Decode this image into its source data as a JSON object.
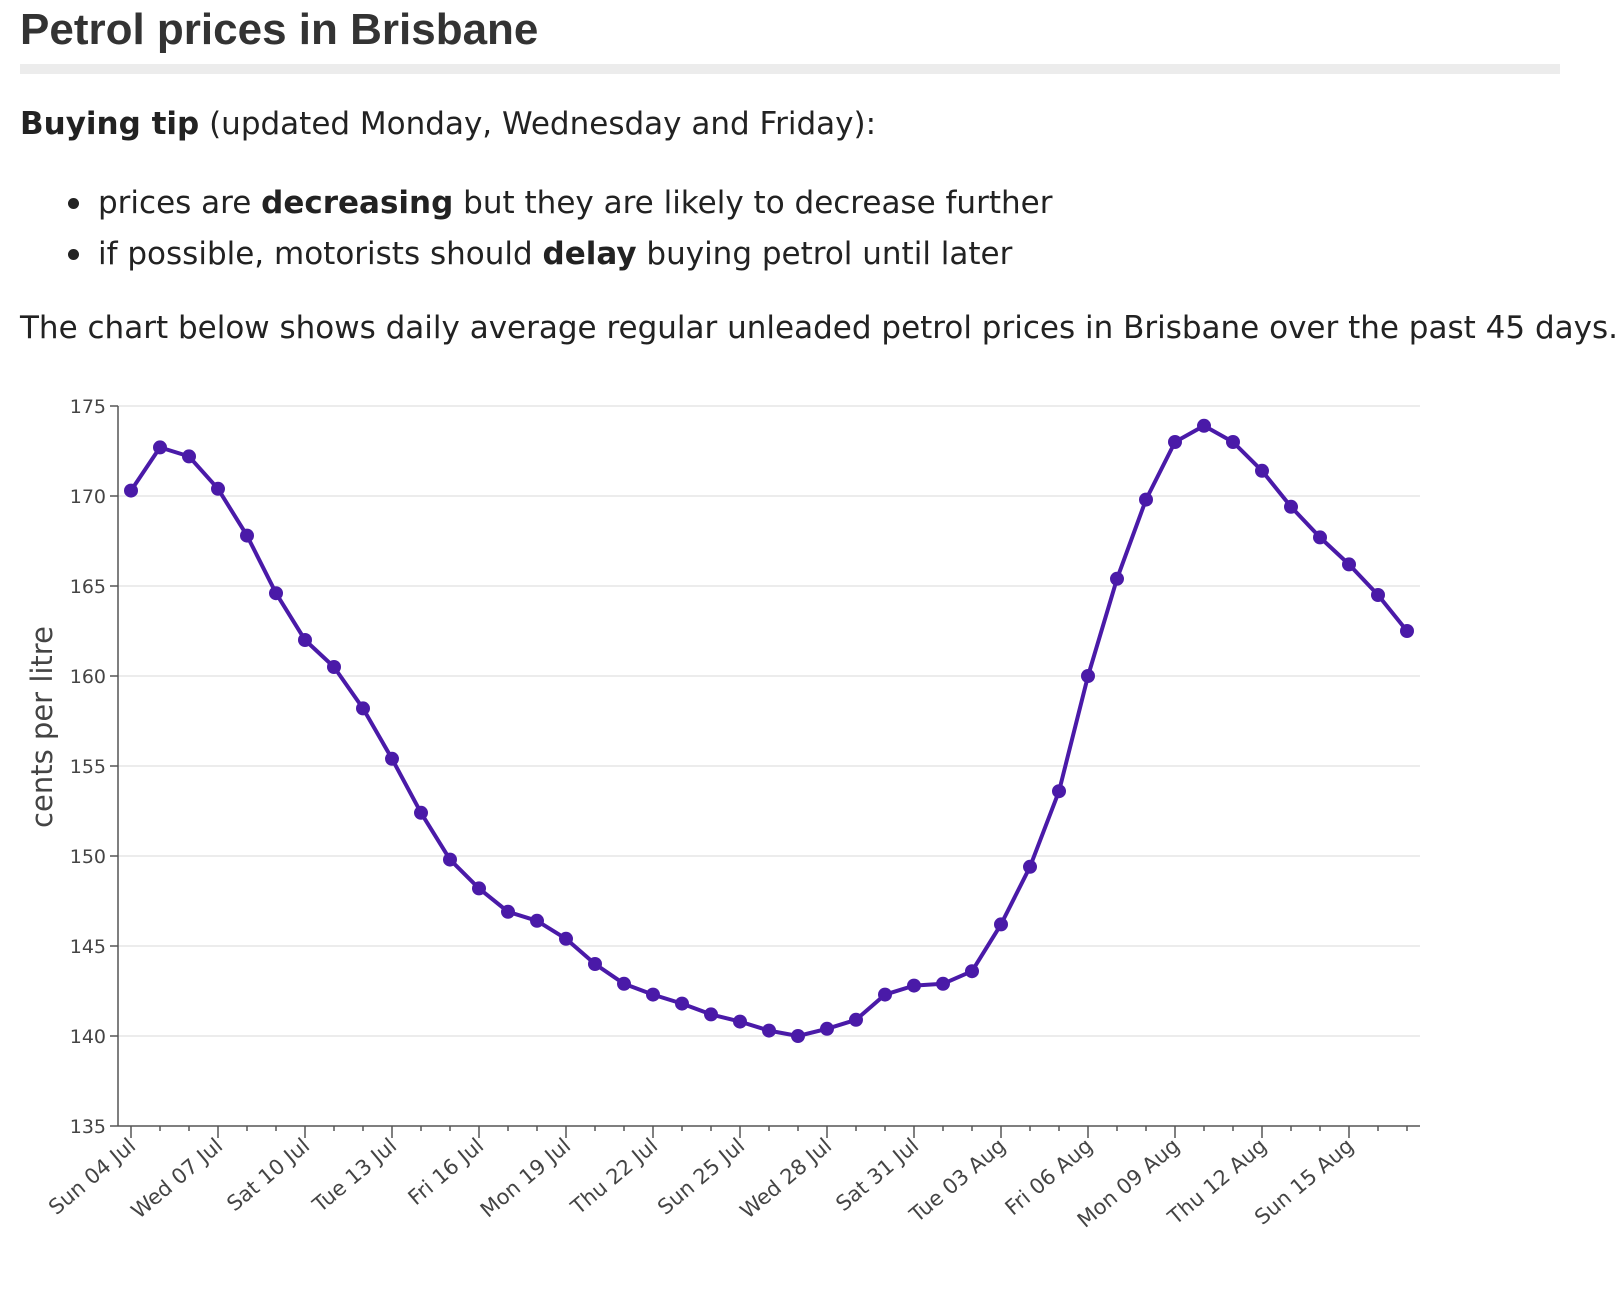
{
  "page": {
    "title": "Petrol prices in Brisbane",
    "tip": {
      "label": "Buying tip",
      "note": " (updated Monday, Wednesday and Friday):"
    },
    "bullets": [
      {
        "before": "prices are ",
        "bold": "decreasing",
        "after": " but they are likely to decrease further"
      },
      {
        "before": "if possible, motorists should ",
        "bold": "delay",
        "after": " buying petrol until later"
      }
    ],
    "chart_description": "The chart below shows daily average regular unleaded petrol prices in Brisbane over the past 45 days."
  },
  "colors": {
    "line": "#4a1aa8",
    "grid": "#e6e6e6",
    "axis": "#555555"
  },
  "chart_data": {
    "type": "line",
    "title": "",
    "xlabel": "",
    "ylabel": "cents per litre",
    "ylim": [
      135,
      175
    ],
    "yticks": [
      135,
      140,
      145,
      150,
      155,
      160,
      165,
      170,
      175
    ],
    "grid": true,
    "x_tick_labels": [
      "Sun 04 Jul",
      "Wed 07 Jul",
      "Sat 10 Jul",
      "Tue 13 Jul",
      "Fri 16 Jul",
      "Mon 19 Jul",
      "Thu 22 Jul",
      "Sun 25 Jul",
      "Wed 28 Jul",
      "Sat 31 Jul",
      "Tue 03 Aug",
      "Fri 06 Aug",
      "Mon 09 Aug",
      "Thu 12 Aug",
      "Sun 15 Aug"
    ],
    "x": [
      "2021-07-04",
      "2021-07-05",
      "2021-07-06",
      "2021-07-07",
      "2021-07-08",
      "2021-07-09",
      "2021-07-10",
      "2021-07-11",
      "2021-07-12",
      "2021-07-13",
      "2021-07-14",
      "2021-07-15",
      "2021-07-16",
      "2021-07-17",
      "2021-07-18",
      "2021-07-19",
      "2021-07-20",
      "2021-07-21",
      "2021-07-22",
      "2021-07-23",
      "2021-07-24",
      "2021-07-25",
      "2021-07-26",
      "2021-07-27",
      "2021-07-28",
      "2021-07-29",
      "2021-07-30",
      "2021-07-31",
      "2021-08-01",
      "2021-08-02",
      "2021-08-03",
      "2021-08-04",
      "2021-08-05",
      "2021-08-06",
      "2021-08-07",
      "2021-08-08",
      "2021-08-09",
      "2021-08-10",
      "2021-08-11",
      "2021-08-12",
      "2021-08-13",
      "2021-08-14",
      "2021-08-15",
      "2021-08-16",
      "2021-08-17"
    ],
    "series": [
      {
        "values": [
          170.3,
          172.7,
          172.2,
          170.4,
          167.8,
          164.6,
          162.0,
          160.5,
          158.2,
          155.4,
          152.4,
          149.8,
          148.2,
          146.9,
          146.4,
          145.4,
          144.0,
          142.9,
          142.3,
          141.8,
          141.2,
          140.8,
          140.3,
          140.0,
          140.4,
          140.9,
          142.3,
          142.8,
          142.9,
          143.6,
          146.2,
          149.4,
          153.6,
          160.0,
          165.4,
          169.8,
          173.0,
          173.9,
          173.0,
          171.4,
          169.4,
          167.7,
          166.2,
          164.5,
          162.5
        ]
      }
    ]
  }
}
